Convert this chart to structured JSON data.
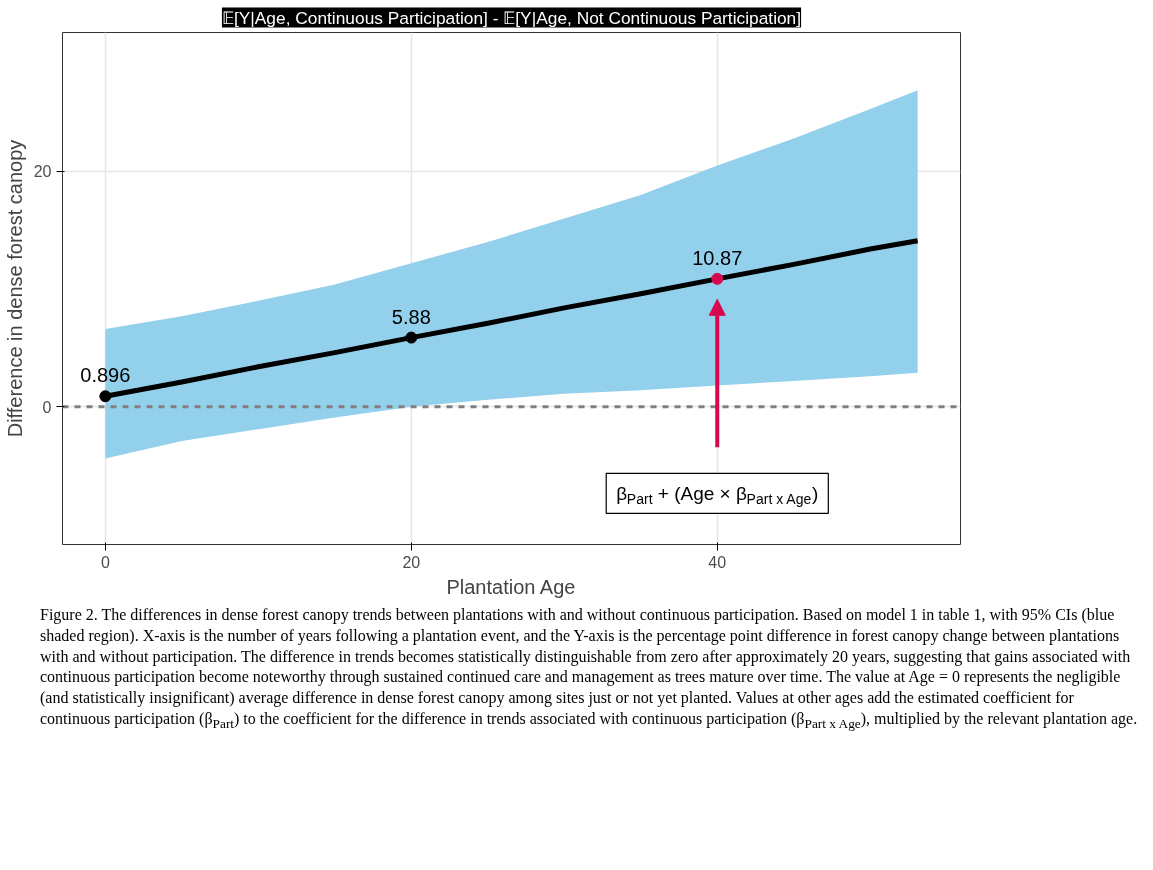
{
  "chart_data": {
    "type": "line",
    "title": "𝔼[Y|Age, Continuous Participation] - 𝔼[Y|Age, Not Continuous Participation]",
    "xlabel": "Plantation Age",
    "ylabel": "Difference in dense forest canopy",
    "xlim": [
      -2.8,
      55.9
    ],
    "ylim": [
      -11.7,
      31.8
    ],
    "xticks": [
      0,
      20,
      40
    ],
    "yticks": [
      0,
      20
    ],
    "grid": true,
    "series": [
      {
        "type": "line",
        "color": "#000000",
        "marker": "none",
        "x": [
          0,
          5,
          10,
          15,
          20,
          25,
          30,
          35,
          40,
          45,
          50,
          53.1
        ],
        "values": [
          0.896,
          2.1,
          3.4,
          4.6,
          5.88,
          7.1,
          8.4,
          9.6,
          10.87,
          12.1,
          13.4,
          14.1
        ],
        "lower": [
          -4.4,
          -2.9,
          -1.9,
          -0.9,
          0.0,
          0.6,
          1.1,
          1.4,
          1.8,
          2.2,
          2.6,
          2.9
        ],
        "upper": [
          6.6,
          7.7,
          9.0,
          10.4,
          12.2,
          14.0,
          16.0,
          18.0,
          20.5,
          22.8,
          25.3,
          26.9
        ]
      },
      {
        "type": "scatter",
        "marker": "circle",
        "x": [
          0,
          20,
          40
        ],
        "values": [
          0.896,
          5.88,
          10.87
        ],
        "colors": [
          "#000000",
          "#000000",
          "#d6084f"
        ],
        "value_labels": [
          "0.896",
          "5.88",
          "10.87"
        ]
      }
    ],
    "ref_lines": [
      {
        "axis": "y",
        "value": 0,
        "color": "#808080",
        "line_style": "dashed"
      }
    ],
    "annotations": [
      "β$_{Part}$ + (Age × β$_{Part x Age}$)",
      "Figure 2. The differences in dense forest canopy trends between plantations with and without continuous participation. Based on model 1 in table 1, with 95% CIs (blue shaded region). X-axis is the number of years following a plantation event, and the Y-axis is the percentage point difference in forest canopy change between plantations with and without participation. The difference in trends becomes statistically distinguishable from zero after approximately 20 years, suggesting that gains associated with continuous participation become noteworthy through sustained continued care and management as trees mature over time. The value at Age = 0 represents the negligible (and statistically insignificant) average difference in dense forest canopy among sites just or not yet planted. Values at other ages add the estimated coefficient for continuous participation (β$_{Part}$) to the coefficient for the difference in trends associated with continuous participation (β$_{Part x Age}$), multiplied by the relevant plantation age."
    ]
  }
}
